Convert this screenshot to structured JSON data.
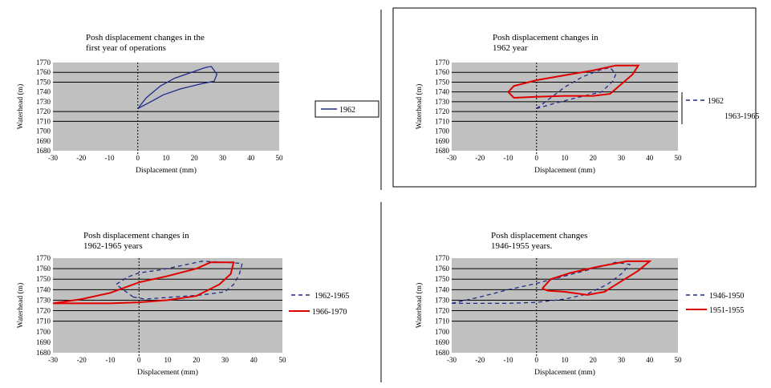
{
  "chart_data": [
    {
      "type": "line",
      "title": [
        "Posh displacement changes in the",
        "first year of operations"
      ],
      "xlabel": "Displacement (mm)",
      "ylabel": "Waterhead (m)",
      "xlim": [
        -30,
        50
      ],
      "ylim": [
        1680,
        1770
      ],
      "x_ticks": [
        -30,
        -20,
        -10,
        0,
        10,
        20,
        30,
        40,
        50
      ],
      "y_ticks": [
        1680,
        1690,
        1700,
        1710,
        1720,
        1730,
        1740,
        1750,
        1760,
        1770
      ],
      "grid": "horizontal",
      "legend": "right",
      "series": [
        {
          "name": "1962",
          "color": "#1f2a8a",
          "style": "solid",
          "points": [
            [
              0,
              1723
            ],
            [
              3,
              1734
            ],
            [
              8,
              1746
            ],
            [
              13,
              1754
            ],
            [
              19,
              1760
            ],
            [
              24,
              1765
            ],
            [
              26,
              1766
            ],
            [
              28,
              1758
            ],
            [
              27,
              1751
            ],
            [
              22,
              1748
            ],
            [
              15,
              1743
            ],
            [
              9,
              1737
            ],
            [
              4,
              1729
            ],
            [
              0,
              1723
            ]
          ]
        }
      ]
    },
    {
      "type": "line",
      "title": [
        "Posh displacement changes in",
        "1962 year"
      ],
      "xlabel": "Displacement (mm)",
      "ylabel": "Waterhead (m)",
      "xlim": [
        -30,
        50
      ],
      "ylim": [
        1680,
        1770
      ],
      "x_ticks": [
        -30,
        -20,
        -10,
        0,
        10,
        20,
        30,
        40,
        50
      ],
      "y_ticks": [
        1680,
        1690,
        1700,
        1710,
        1720,
        1730,
        1740,
        1750,
        1760,
        1770
      ],
      "grid": "horizontal",
      "legend": "right",
      "series": [
        {
          "name": "1962",
          "color": "#1f2a8a",
          "style": "dashed",
          "points": [
            [
              0,
              1723
            ],
            [
              5,
              1734
            ],
            [
              10,
              1745
            ],
            [
              16,
              1755
            ],
            [
              22,
              1762
            ],
            [
              26,
              1765
            ],
            [
              28,
              1758
            ],
            [
              27,
              1751
            ],
            [
              23,
              1740
            ],
            [
              14,
              1734
            ],
            [
              6,
              1728
            ],
            [
              0,
              1723
            ]
          ]
        },
        {
          "name": "1963-1965",
          "color": "#e00000",
          "style": "solid",
          "points": [
            [
              -10,
              1740
            ],
            [
              -8,
              1746
            ],
            [
              0,
              1752
            ],
            [
              10,
              1757
            ],
            [
              20,
              1762
            ],
            [
              28,
              1767
            ],
            [
              36,
              1767
            ],
            [
              34,
              1758
            ],
            [
              30,
              1748
            ],
            [
              26,
              1738
            ],
            [
              20,
              1736
            ],
            [
              10,
              1736
            ],
            [
              0,
              1735
            ],
            [
              -8,
              1734
            ],
            [
              -10,
              1740
            ]
          ]
        }
      ]
    },
    {
      "type": "line",
      "title": [
        "Posh displacement changes in",
        "1962-1965 years"
      ],
      "xlabel": "Displacement (mm)",
      "ylabel": "Waterhead (m)",
      "xlim": [
        -30,
        50
      ],
      "ylim": [
        1680,
        1770
      ],
      "x_ticks": [
        -30,
        -20,
        -10,
        0,
        10,
        20,
        30,
        40,
        50
      ],
      "y_ticks": [
        1680,
        1690,
        1700,
        1710,
        1720,
        1730,
        1740,
        1750,
        1760,
        1770
      ],
      "grid": "horizontal",
      "legend": "right",
      "series": [
        {
          "name": "1962-1965",
          "color": "#1f2a8a",
          "style": "dashed",
          "points": [
            [
              -2,
              1733
            ],
            [
              -8,
              1745
            ],
            [
              -4,
              1752
            ],
            [
              0,
              1756
            ],
            [
              8,
              1759
            ],
            [
              15,
              1763
            ],
            [
              22,
              1767
            ],
            [
              30,
              1766
            ],
            [
              36,
              1765
            ],
            [
              35,
              1755
            ],
            [
              33,
              1745
            ],
            [
              30,
              1738
            ],
            [
              22,
              1735
            ],
            [
              12,
              1733
            ],
            [
              2,
              1731
            ],
            [
              -2,
              1733
            ]
          ]
        },
        {
          "name": "1966-1970",
          "color": "#e00000",
          "style": "solid",
          "points": [
            [
              -30,
              1727
            ],
            [
              -20,
              1731
            ],
            [
              -10,
              1737
            ],
            [
              0,
              1747
            ],
            [
              10,
              1753
            ],
            [
              20,
              1760
            ],
            [
              25,
              1766
            ],
            [
              33,
              1766
            ],
            [
              32,
              1755
            ],
            [
              28,
              1745
            ],
            [
              20,
              1734
            ],
            [
              10,
              1730
            ],
            [
              0,
              1728
            ],
            [
              -10,
              1727
            ],
            [
              -20,
              1727
            ],
            [
              -30,
              1727
            ]
          ]
        }
      ]
    },
    {
      "type": "line",
      "title": [
        "Posh displacement changes",
        "1946-1955 years."
      ],
      "xlabel": "Displacement (mm)",
      "ylabel": "Waterhead (m)",
      "xlim": [
        -30,
        50
      ],
      "ylim": [
        1680,
        1770
      ],
      "x_ticks": [
        -30,
        -20,
        -10,
        0,
        10,
        20,
        30,
        40,
        50
      ],
      "y_ticks": [
        1680,
        1690,
        1700,
        1710,
        1720,
        1730,
        1740,
        1750,
        1760,
        1770
      ],
      "grid": "horizontal",
      "legend": "right",
      "series": [
        {
          "name": "1946-1950",
          "color": "#1f2a8a",
          "style": "dashed",
          "points": [
            [
              -30,
              1727
            ],
            [
              -20,
              1733
            ],
            [
              -10,
              1740
            ],
            [
              0,
              1746
            ],
            [
              10,
              1753
            ],
            [
              20,
              1760
            ],
            [
              28,
              1766
            ],
            [
              33,
              1764
            ],
            [
              30,
              1755
            ],
            [
              25,
              1745
            ],
            [
              18,
              1736
            ],
            [
              10,
              1731
            ],
            [
              0,
              1728
            ],
            [
              -10,
              1727
            ],
            [
              -20,
              1727
            ],
            [
              -30,
              1727
            ]
          ]
        },
        {
          "name": "1951-1955",
          "color": "#e00000",
          "style": "solid",
          "points": [
            [
              2,
              1741
            ],
            [
              5,
              1750
            ],
            [
              12,
              1756
            ],
            [
              22,
              1762
            ],
            [
              32,
              1767
            ],
            [
              40,
              1767
            ],
            [
              36,
              1758
            ],
            [
              30,
              1748
            ],
            [
              24,
              1738
            ],
            [
              18,
              1735
            ],
            [
              10,
              1738
            ],
            [
              4,
              1739
            ],
            [
              2,
              1741
            ]
          ]
        }
      ]
    }
  ]
}
